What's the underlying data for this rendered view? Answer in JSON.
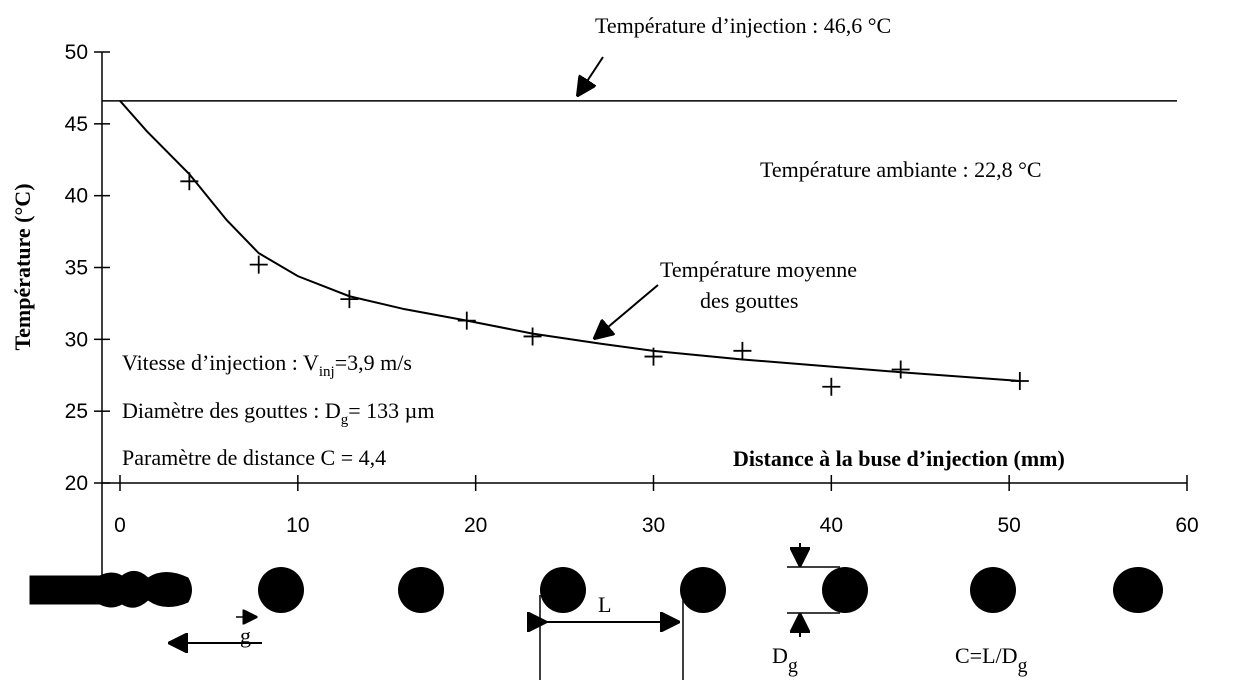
{
  "chart_data": {
    "type": "scatter",
    "xlabel": "Distance à la buse d’injection (mm)",
    "ylabel": "Température (°C)",
    "xlim": [
      0,
      60
    ],
    "xticks": [
      0,
      10,
      20,
      30,
      40,
      50,
      60
    ],
    "ylim": [
      20,
      50
    ],
    "yticks": [
      20,
      25,
      30,
      35,
      40,
      45,
      50
    ],
    "hline": 46.6,
    "series": [
      {
        "marker": "+",
        "color": "#000000",
        "x": [
          3.9,
          7.8,
          12.9,
          19.5,
          23.2,
          30,
          35,
          40,
          43.9,
          50.6
        ],
        "values": [
          41,
          35.2,
          32.8,
          31.3,
          30.2,
          28.8,
          29.2,
          26.7,
          27.9,
          27.1
        ]
      },
      {
        "marker": "line",
        "color": "#000000",
        "x": [
          0,
          1.5,
          3.9,
          6,
          7.8,
          10,
          12.9,
          16,
          19.5,
          23.2,
          27,
          30,
          35,
          40,
          44,
          50.6
        ],
        "values": [
          46.6,
          44.5,
          41.5,
          38.3,
          36,
          34.4,
          33,
          32.1,
          31.3,
          30.4,
          29.7,
          29.2,
          28.6,
          28.1,
          27.7,
          27.1
        ]
      }
    ],
    "annotations": {
      "injection": "Température d’injection  : 46,6 °C",
      "ambient": "Température ambiante : 22,8 °C",
      "mean": [
        "Température moyenne",
        "des gouttes"
      ],
      "speed": {
        "text": "Vitesse d’injection : V",
        "sub": "inj",
        "after": "=3,9 m/s"
      },
      "diameter": {
        "text": "Diamètre des gouttes : D",
        "sub": "g",
        "after": "= 133 µm"
      },
      "distance": "Paramètre de distance C = 4,4"
    },
    "diagram": {
      "gravity": "g",
      "length": "L",
      "diam": {
        "text": "D",
        "sub": "g"
      },
      "ratio": {
        "text": "C=L/D",
        "sub": "g"
      }
    }
  }
}
